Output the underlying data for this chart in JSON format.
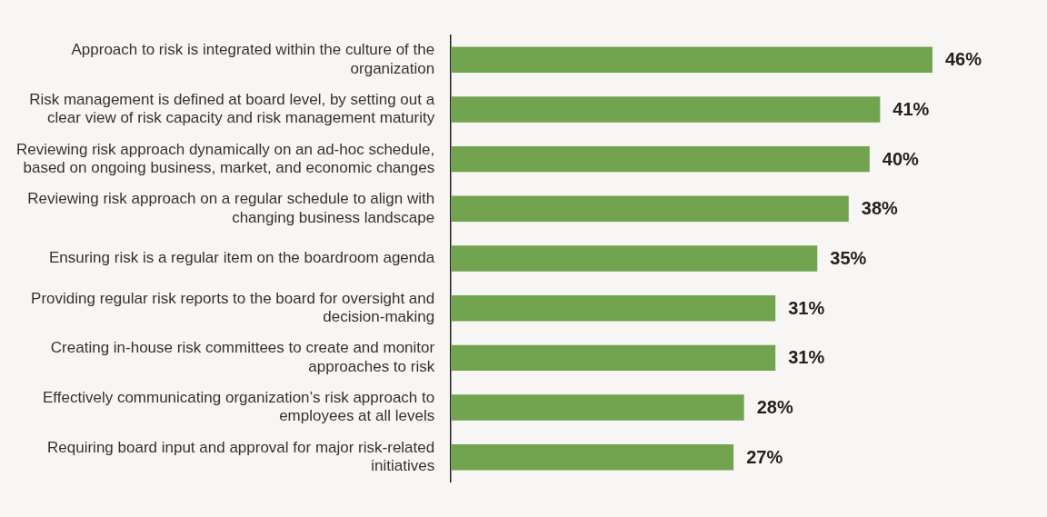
{
  "chart_data": {
    "type": "bar",
    "orientation": "horizontal",
    "categories": [
      "Approach to risk is integrated within the culture of the organization",
      "Risk management is defined at board level, by setting out a clear view of risk capacity and risk management maturity",
      "Reviewing risk approach dynamically on an ad-hoc schedule, based on ongoing business, market, and economic changes",
      "Reviewing risk approach on a regular schedule to align with changing business landscape",
      "Ensuring risk is a regular item on the boardroom agenda",
      "Providing regular risk reports to the board for oversight and decision-making",
      "Creating in-house risk committees to create and monitor approaches to risk",
      "Effectively communicating organization’s risk approach to employees at all levels",
      "Requiring board input and approval for major risk-related initiatives"
    ],
    "values": [
      46,
      41,
      40,
      38,
      35,
      31,
      31,
      28,
      27
    ],
    "color": "#72a34f",
    "value_labels": [
      "46%",
      "41%",
      "40%",
      "38%",
      "35%",
      "31%",
      "31%",
      "28%",
      "27%"
    ],
    "legend": false
  }
}
